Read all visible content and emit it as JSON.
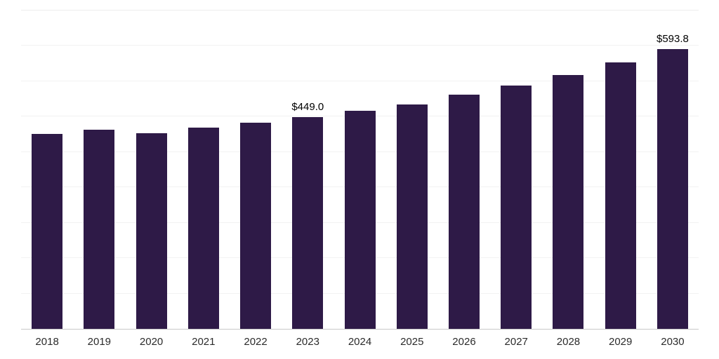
{
  "chart_data": {
    "type": "bar",
    "title": "",
    "categories": [
      "2018",
      "2019",
      "2020",
      "2021",
      "2022",
      "2023",
      "2024",
      "2025",
      "2026",
      "2027",
      "2028",
      "2029",
      "2030"
    ],
    "values": [
      413,
      423,
      415,
      427,
      437,
      449.0,
      463,
      476,
      497,
      516,
      538,
      565,
      593.8
    ],
    "annotations": [
      {
        "category": "2023",
        "label": "$449.0"
      },
      {
        "category": "2030",
        "label": "$593.8"
      }
    ],
    "xlabel": "",
    "ylabel": "",
    "ylim": [
      0,
      675
    ],
    "grid_step": 75,
    "grid": true,
    "legend_position": "none",
    "bar_color": "#2e1a47",
    "axis_line_color": "#c9c9c9",
    "gridline_color": "#f2f2f2",
    "label_color": "#000000",
    "tick_label_color": "#2b2b2b"
  }
}
